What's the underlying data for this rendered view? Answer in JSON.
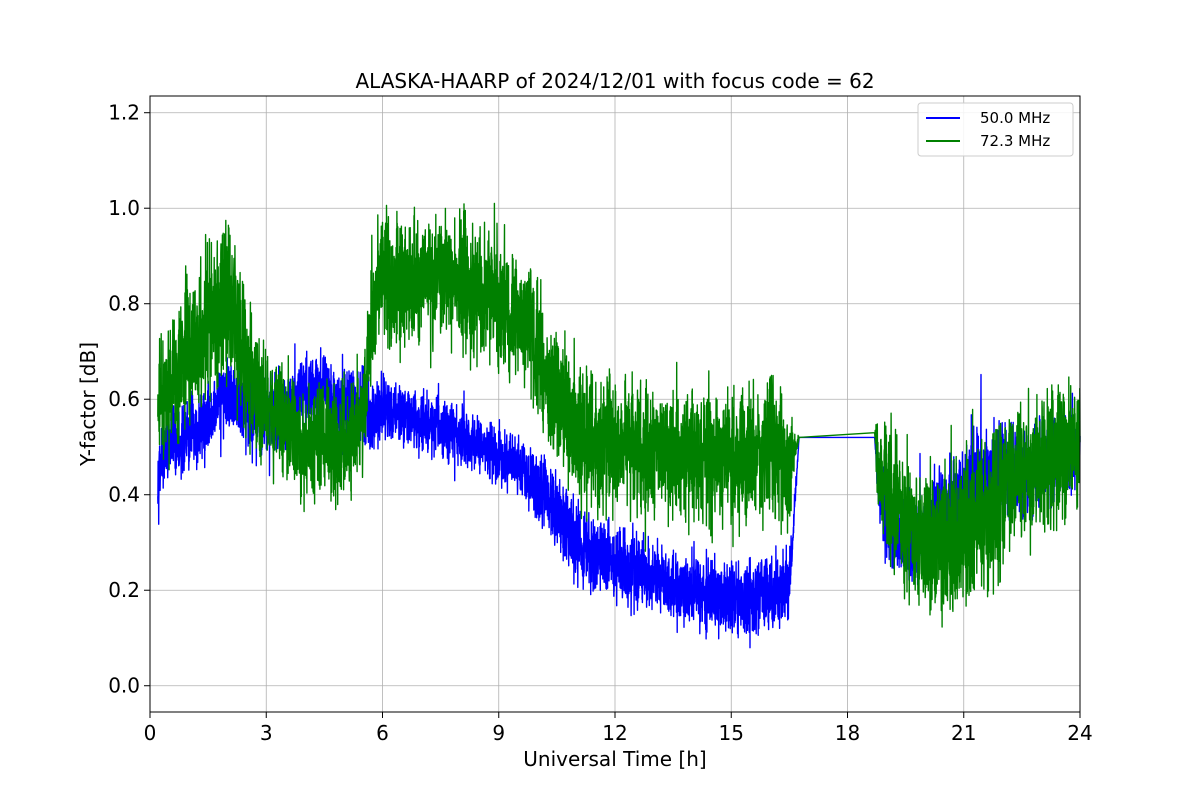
{
  "chart_data": {
    "type": "line",
    "title": "ALASKA-HAARP of 2024/12/01 with focus code = 62",
    "xlabel": "Universal Time [h]",
    "ylabel": "Y-factor [dB]",
    "xlim": [
      0,
      24
    ],
    "ylim": [
      -0.055,
      1.235
    ],
    "xticks": [
      0,
      3,
      6,
      9,
      12,
      15,
      18,
      21,
      24
    ],
    "yticks": [
      0.0,
      0.2,
      0.4,
      0.6,
      0.8,
      1.0,
      1.2
    ],
    "xtick_labels": [
      "0",
      "3",
      "6",
      "9",
      "12",
      "15",
      "18",
      "21",
      "24"
    ],
    "ytick_labels": [
      "0.0",
      "0.2",
      "0.4",
      "0.6",
      "0.8",
      "1.0",
      "1.2"
    ],
    "grid": true,
    "legend": "top-right",
    "series": [
      {
        "name": "50.0 MHz",
        "color": "#0000ff",
        "x": [
          0.2,
          0.5,
          1.0,
          1.5,
          2.0,
          2.5,
          3.0,
          3.5,
          4.0,
          4.5,
          5.0,
          5.5,
          5.7,
          6.0,
          6.5,
          7.0,
          7.5,
          8.0,
          8.5,
          9.0,
          9.5,
          10.0,
          10.5,
          11.0,
          11.5,
          12.0,
          12.5,
          13.0,
          13.5,
          14.0,
          14.5,
          15.0,
          15.5,
          16.0,
          16.5,
          16.75,
          18.7,
          18.8,
          19.0,
          19.5,
          20.0,
          20.5,
          21.0,
          21.5,
          22.0,
          22.5,
          23.0,
          23.5,
          24.0
        ],
        "y": [
          0.45,
          0.5,
          0.52,
          0.55,
          0.62,
          0.58,
          0.56,
          0.58,
          0.62,
          0.62,
          0.58,
          0.58,
          0.56,
          0.58,
          0.56,
          0.55,
          0.54,
          0.53,
          0.5,
          0.48,
          0.46,
          0.42,
          0.36,
          0.3,
          0.28,
          0.25,
          0.24,
          0.23,
          0.21,
          0.2,
          0.19,
          0.18,
          0.19,
          0.2,
          0.2,
          0.52,
          0.52,
          0.4,
          0.35,
          0.3,
          0.33,
          0.38,
          0.42,
          0.44,
          0.45,
          0.44,
          0.46,
          0.48,
          0.5
        ],
        "amp": [
          0.08,
          0.1,
          0.1,
          0.1,
          0.1,
          0.1,
          0.12,
          0.12,
          0.1,
          0.1,
          0.1,
          0.1,
          0.1,
          0.08,
          0.08,
          0.08,
          0.08,
          0.08,
          0.08,
          0.08,
          0.08,
          0.1,
          0.1,
          0.1,
          0.1,
          0.1,
          0.1,
          0.1,
          0.1,
          0.1,
          0.1,
          0.1,
          0.1,
          0.1,
          0.1,
          0.0,
          0.0,
          0.1,
          0.12,
          0.12,
          0.12,
          0.12,
          0.14,
          0.14,
          0.14,
          0.12,
          0.12,
          0.12,
          0.12
        ]
      },
      {
        "name": "72.3 MHz",
        "color": "#008000",
        "x": [
          0.2,
          0.5,
          1.0,
          1.5,
          2.0,
          2.5,
          3.0,
          3.5,
          4.0,
          4.5,
          5.0,
          5.5,
          5.7,
          6.0,
          6.5,
          7.0,
          7.5,
          8.0,
          8.5,
          9.0,
          9.5,
          10.0,
          10.5,
          11.0,
          11.5,
          12.0,
          12.5,
          13.0,
          13.5,
          14.0,
          14.5,
          15.0,
          15.5,
          16.0,
          16.5,
          16.75,
          18.7,
          18.8,
          19.0,
          19.5,
          20.0,
          20.5,
          21.0,
          21.5,
          22.0,
          22.5,
          23.0,
          23.5,
          24.0
        ],
        "y": [
          0.6,
          0.62,
          0.7,
          0.75,
          0.82,
          0.65,
          0.58,
          0.56,
          0.5,
          0.52,
          0.5,
          0.56,
          0.78,
          0.85,
          0.84,
          0.85,
          0.86,
          0.85,
          0.82,
          0.8,
          0.78,
          0.7,
          0.6,
          0.52,
          0.5,
          0.5,
          0.5,
          0.5,
          0.48,
          0.48,
          0.48,
          0.46,
          0.48,
          0.5,
          0.46,
          0.52,
          0.53,
          0.45,
          0.4,
          0.35,
          0.3,
          0.28,
          0.32,
          0.36,
          0.4,
          0.44,
          0.46,
          0.48,
          0.52
        ],
        "amp": [
          0.14,
          0.18,
          0.2,
          0.2,
          0.22,
          0.18,
          0.16,
          0.16,
          0.16,
          0.16,
          0.16,
          0.16,
          0.16,
          0.18,
          0.18,
          0.18,
          0.18,
          0.18,
          0.18,
          0.18,
          0.18,
          0.18,
          0.18,
          0.18,
          0.18,
          0.18,
          0.18,
          0.18,
          0.18,
          0.18,
          0.18,
          0.18,
          0.18,
          0.18,
          0.18,
          0.0,
          0.0,
          0.16,
          0.18,
          0.2,
          0.2,
          0.2,
          0.2,
          0.2,
          0.2,
          0.18,
          0.18,
          0.18,
          0.18
        ]
      }
    ]
  }
}
